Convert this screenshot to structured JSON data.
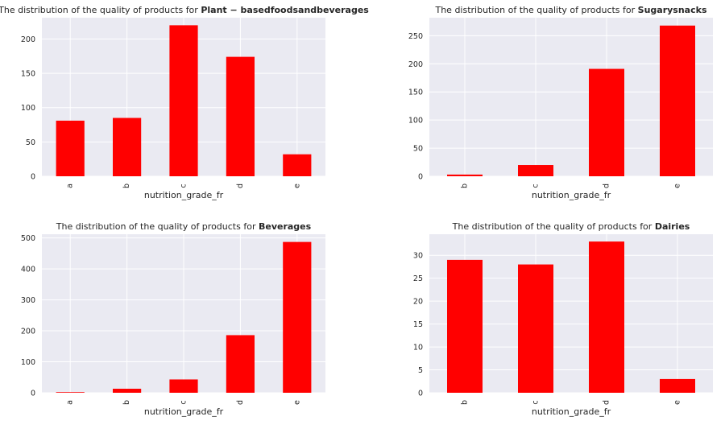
{
  "chart_data": [
    {
      "type": "bar",
      "title_prefix": "The distribution of the quality of products for ",
      "title_bold": "Plant − basedfoodsandbeverages",
      "xlabel": "nutrition_grade_fr",
      "ylabel": "",
      "categories": [
        "a",
        "b",
        "c",
        "d",
        "e"
      ],
      "values": [
        81,
        85,
        220,
        174,
        32
      ],
      "ylim": [
        0,
        231
      ],
      "yticks": [
        0,
        50,
        100,
        150,
        200
      ],
      "color": "#ff0000",
      "background": "#eaeaf2",
      "grid": true,
      "legend": "none"
    },
    {
      "type": "bar",
      "title_prefix": "The distribution of the quality of products for ",
      "title_bold": "Sugarysnacks",
      "xlabel": "nutrition_grade_fr",
      "ylabel": "",
      "categories": [
        "b",
        "c",
        "d",
        "e"
      ],
      "values": [
        3,
        20,
        191,
        268
      ],
      "ylim": [
        0,
        282
      ],
      "yticks": [
        0,
        50,
        100,
        150,
        200,
        250
      ],
      "color": "#ff0000",
      "background": "#eaeaf2",
      "grid": true,
      "legend": "none"
    },
    {
      "type": "bar",
      "title_prefix": "The distribution of the quality of products for ",
      "title_bold": "Beverages",
      "xlabel": "nutrition_grade_fr",
      "ylabel": "",
      "categories": [
        "a",
        "b",
        "c",
        "d",
        "e"
      ],
      "values": [
        2,
        13,
        43,
        186,
        487
      ],
      "ylim": [
        0,
        512
      ],
      "yticks": [
        0,
        100,
        200,
        300,
        400,
        500
      ],
      "color": "#ff0000",
      "background": "#eaeaf2",
      "grid": true,
      "legend": "none"
    },
    {
      "type": "bar",
      "title_prefix": "The distribution of the quality of products for ",
      "title_bold": "Dairies",
      "xlabel": "nutrition_grade_fr",
      "ylabel": "",
      "categories": [
        "b",
        "c",
        "d",
        "e"
      ],
      "values": [
        29,
        28,
        33,
        3
      ],
      "ylim": [
        0,
        34.6
      ],
      "yticks": [
        0,
        5,
        10,
        15,
        20,
        25,
        30
      ],
      "color": "#ff0000",
      "background": "#eaeaf2",
      "grid": true,
      "legend": "none"
    }
  ]
}
